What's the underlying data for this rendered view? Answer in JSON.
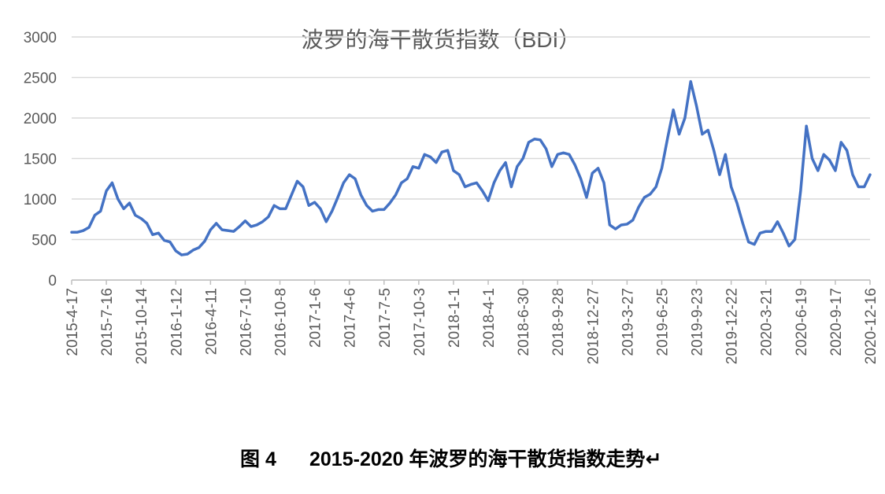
{
  "chart_data": {
    "type": "line",
    "title": "波罗的海干散货指数（BDI）",
    "categories": [
      "2015-4-17",
      null,
      null,
      null,
      null,
      null,
      "2015-7-16",
      null,
      null,
      null,
      null,
      null,
      "2015-10-14",
      null,
      null,
      null,
      null,
      null,
      "2016-1-12",
      null,
      null,
      null,
      null,
      null,
      "2016-4-11",
      null,
      null,
      null,
      null,
      null,
      "2016-7-10",
      null,
      null,
      null,
      null,
      null,
      "2016-10-8",
      null,
      null,
      null,
      null,
      null,
      "2017-1-6",
      null,
      null,
      null,
      null,
      null,
      "2017-4-6",
      null,
      null,
      null,
      null,
      null,
      "2017-7-5",
      null,
      null,
      null,
      null,
      null,
      "2017-10-3",
      null,
      null,
      null,
      null,
      null,
      "2018-1-1",
      null,
      null,
      null,
      null,
      null,
      "2018-4-1",
      null,
      null,
      null,
      null,
      null,
      "2018-6-30",
      null,
      null,
      null,
      null,
      null,
      "2018-9-28",
      null,
      null,
      null,
      null,
      null,
      "2018-12-27",
      null,
      null,
      null,
      null,
      null,
      "2019-3-27",
      null,
      null,
      null,
      null,
      null,
      "2019-6-25",
      null,
      null,
      null,
      null,
      null,
      "2019-9-23",
      null,
      null,
      null,
      null,
      null,
      "2019-12-22",
      null,
      null,
      null,
      null,
      null,
      "2020-3-21",
      null,
      null,
      null,
      null,
      null,
      "2020-6-19",
      null,
      null,
      null,
      null,
      null,
      "2020-9-17",
      null,
      null,
      null,
      null,
      null,
      "2020-12-16"
    ],
    "values": [
      590,
      590,
      610,
      650,
      800,
      850,
      1100,
      1200,
      1000,
      880,
      950,
      800,
      760,
      700,
      560,
      580,
      490,
      470,
      360,
      310,
      320,
      370,
      400,
      480,
      620,
      700,
      620,
      610,
      600,
      660,
      730,
      660,
      680,
      720,
      780,
      920,
      880,
      880,
      1050,
      1220,
      1150,
      920,
      960,
      880,
      720,
      850,
      1020,
      1200,
      1300,
      1250,
      1050,
      920,
      850,
      870,
      870,
      950,
      1050,
      1200,
      1250,
      1400,
      1380,
      1550,
      1520,
      1450,
      1580,
      1600,
      1350,
      1300,
      1150,
      1180,
      1200,
      1100,
      980,
      1200,
      1350,
      1450,
      1150,
      1400,
      1500,
      1700,
      1740,
      1730,
      1620,
      1400,
      1550,
      1570,
      1550,
      1420,
      1250,
      1020,
      1320,
      1380,
      1200,
      680,
      630,
      680,
      690,
      740,
      900,
      1020,
      1060,
      1150,
      1380,
      1750,
      2100,
      1800,
      2000,
      2450,
      2150,
      1800,
      1850,
      1600,
      1300,
      1550,
      1150,
      950,
      700,
      470,
      440,
      580,
      600,
      600,
      720,
      580,
      420,
      500,
      1100,
      1900,
      1500,
      1350,
      1550,
      1480,
      1350,
      1700,
      1600,
      1300,
      1150,
      1150,
      1300
    ],
    "color": "#4472c4",
    "ylim": [
      0,
      3000
    ],
    "yticks": [
      0,
      500,
      1000,
      1500,
      2000,
      2500,
      3000
    ],
    "grid": true
  },
  "caption": {
    "label": "图 4",
    "text": "2015-2020 年波罗的海干散货指数走势↵"
  }
}
